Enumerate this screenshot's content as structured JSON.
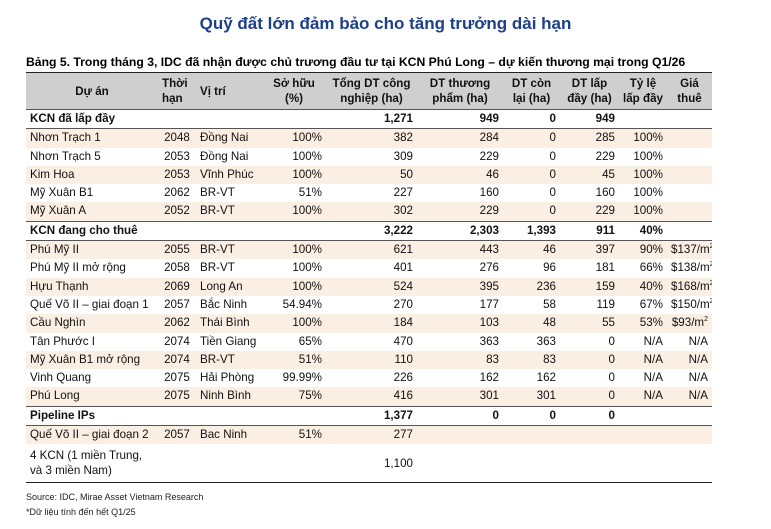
{
  "heading": "Quỹ đất lớn đảm bảo cho tăng trưởng dài hạn",
  "caption": "Bảng 5. Trong tháng 3, IDC đã nhận được chủ trương đầu tư tại KCN Phú Long – dự kiến thương mại trong Q1/26",
  "columns": [
    "Dự án",
    "Thời hạn",
    "Vị trí",
    "Sở hữu (%)",
    "Tổng DT công nghiệp (ha)",
    "DT thương phẩm (ha)",
    "DT còn lại (ha)",
    "DT lấp đầy (ha)",
    "Tỷ lệ lấp đầy",
    "Giá thuê"
  ],
  "groups": [
    {
      "title": "KCN đã lấp đầy",
      "total": "1,271",
      "commercial": "949",
      "remaining": "0",
      "filled": "949",
      "rate": "",
      "rows": [
        {
          "name": "Nhơn Trạch 1",
          "term": "2048",
          "location": "Đồng Nai",
          "own": "100%",
          "total": "382",
          "commercial": "284",
          "remaining": "0",
          "filled": "285",
          "rate": "100%",
          "price": ""
        },
        {
          "name": "Nhơn Trạch 5",
          "term": "2053",
          "location": "Đồng Nai",
          "own": "100%",
          "total": "309",
          "commercial": "229",
          "remaining": "0",
          "filled": "229",
          "rate": "100%",
          "price": ""
        },
        {
          "name": "Kim Hoa",
          "term": "2053",
          "location": "Vĩnh Phúc",
          "own": "100%",
          "total": "50",
          "commercial": "46",
          "remaining": "0",
          "filled": "45",
          "rate": "100%",
          "price": ""
        },
        {
          "name": "Mỹ Xuân B1",
          "term": "2062",
          "location": "BR-VT",
          "own": "51%",
          "total": "227",
          "commercial": "160",
          "remaining": "0",
          "filled": "160",
          "rate": "100%",
          "price": ""
        },
        {
          "name": "Mỹ Xuân A",
          "term": "2052",
          "location": "BR-VT",
          "own": "100%",
          "total": "302",
          "commercial": "229",
          "remaining": "0",
          "filled": "229",
          "rate": "100%",
          "price": ""
        }
      ]
    },
    {
      "title": "KCN đang cho thuê",
      "total": "3,222",
      "commercial": "2,303",
      "remaining": "1,393",
      "filled": "911",
      "rate": "40%",
      "rows": [
        {
          "name": "Phú Mỹ II",
          "term": "2055",
          "location": "BR-VT",
          "own": "100%",
          "total": "621",
          "commercial": "443",
          "remaining": "46",
          "filled": "397",
          "rate": "90%",
          "price": "$137/m",
          "sup": "2"
        },
        {
          "name": "Phú Mỹ II mở rộng",
          "term": "2058",
          "location": "BR-VT",
          "own": "100%",
          "total": "401",
          "commercial": "276",
          "remaining": "96",
          "filled": "181",
          "rate": "66%",
          "price": "$138/m",
          "sup": "2"
        },
        {
          "name": "Hựu Thạnh",
          "term": "2069",
          "location": "Long An",
          "own": "100%",
          "total": "524",
          "commercial": "395",
          "remaining": "236",
          "filled": "159",
          "rate": "40%",
          "price": "$168/m",
          "sup": "2"
        },
        {
          "name": "Quế Võ II – giai đoạn 1",
          "term": "2057",
          "location": "Bắc Ninh",
          "own": "54.94%",
          "total": "270",
          "commercial": "177",
          "remaining": "58",
          "filled": "119",
          "rate": "67%",
          "price": "$150/m",
          "sup": "2"
        },
        {
          "name": "Cầu Nghìn",
          "term": "2062",
          "location": "Thái Bình",
          "own": "100%",
          "total": "184",
          "commercial": "103",
          "remaining": "48",
          "filled": "55",
          "rate": "53%",
          "price": "$93/m",
          "sup": "2"
        },
        {
          "name": "Tân Phước I",
          "term": "2074",
          "location": "Tiền Giang",
          "own": "65%",
          "total": "470",
          "commercial": "363",
          "remaining": "363",
          "filled": "0",
          "rate": "N/A",
          "price": "N/A"
        },
        {
          "name": "Mỹ Xuân B1 mở rộng",
          "term": "2074",
          "location": "BR-VT",
          "own": "51%",
          "total": "110",
          "commercial": "83",
          "remaining": "83",
          "filled": "0",
          "rate": "N/A",
          "price": "N/A"
        },
        {
          "name": "Vinh Quang",
          "term": "2075",
          "location": "Hải Phòng",
          "own": "99.99%",
          "total": "226",
          "commercial": "162",
          "remaining": "162",
          "filled": "0",
          "rate": "N/A",
          "price": "N/A"
        },
        {
          "name": "Phú Long",
          "term": "2075",
          "location": "Ninh Bình",
          "own": "75%",
          "total": "416",
          "commercial": "301",
          "remaining": "301",
          "filled": "0",
          "rate": "N/A",
          "price": "N/A"
        }
      ]
    },
    {
      "title": "Pipeline IPs",
      "total": "1,377",
      "commercial": "0",
      "remaining": "0",
      "filled": "0",
      "rate": "",
      "rows": [
        {
          "name": "Quế Võ II – giai đoạn 2",
          "term": "2057",
          "location": "Bac Ninh",
          "own": "51%",
          "total": "277",
          "commercial": "",
          "remaining": "",
          "filled": "",
          "rate": "",
          "price": ""
        },
        {
          "name": "4 KCN (1 miền Trung, và 3 miền Nam)",
          "term": "",
          "location": "",
          "own": "",
          "total": "1,100",
          "commercial": "",
          "remaining": "",
          "filled": "",
          "rate": "",
          "price": "",
          "tall": true
        }
      ]
    }
  ],
  "source": "Source: IDC, Mirae Asset Vietnam Research",
  "footnote": "*Dữ liệu tính đến hết Q1/25",
  "colors": {
    "heading": "#1d3f8a",
    "header_bg": "#cfcfcf",
    "band_bg": "#fbeee2"
  }
}
